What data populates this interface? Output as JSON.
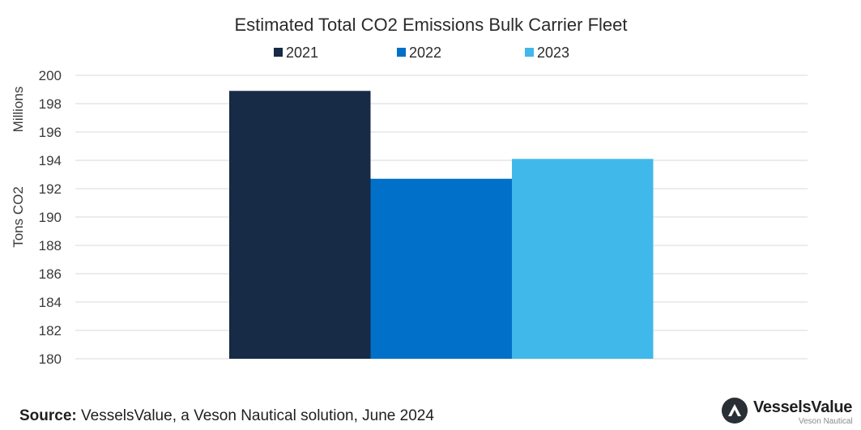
{
  "chart_data": {
    "type": "bar",
    "title": "Estimated Total CO2 Emissions Bulk Carrier Fleet",
    "categories": [
      ""
    ],
    "series": [
      {
        "name": "2021",
        "values": [
          198.9
        ],
        "color": "#172a46"
      },
      {
        "name": "2022",
        "values": [
          192.7
        ],
        "color": "#0070c8"
      },
      {
        "name": "2023",
        "values": [
          194.1
        ],
        "color": "#41b8ea"
      }
    ],
    "ylabel": "Tons CO2",
    "yunit": "Millions",
    "ylim": [
      180,
      200
    ],
    "yticks": [
      180,
      182,
      184,
      186,
      188,
      190,
      192,
      194,
      196,
      198,
      200
    ],
    "grid": true,
    "legend_position": "top"
  },
  "footer": {
    "source_label": "Source:",
    "source_text": " VesselsValue, a Veson Nautical solution, June 2024"
  },
  "logo": {
    "name": "VesselsValue",
    "sub": "Veson Nautical",
    "icon": "vesselsvalue-logo-icon"
  }
}
